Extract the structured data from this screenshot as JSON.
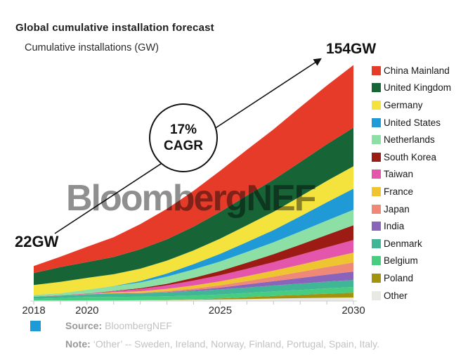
{
  "header": {
    "title": "Global cumulative installation forecast",
    "subtitle": "Cumulative installations (GW)"
  },
  "annotations": {
    "start_value": "22GW",
    "end_value": "154GW",
    "cagr_line1": "17%",
    "cagr_line2": "CAGR",
    "watermark": "BloombergNEF"
  },
  "footer": {
    "bullet_color": "#1f9ad7",
    "source_label": "Source:",
    "source_text": "BloombergNEF",
    "note_label": "Note:",
    "note_text": "‘Other’ -- Sweden, Ireland, Norway, Finland, Portugal, Spain, Italy."
  },
  "chart_data": {
    "type": "area",
    "stacked": true,
    "title": "Global cumulative installation forecast",
    "ylabel": "Cumulative installations (GW)",
    "x": [
      2018,
      2019,
      2020,
      2021,
      2022,
      2023,
      2024,
      2025,
      2026,
      2027,
      2028,
      2029,
      2030
    ],
    "x_ticks": [
      2018,
      2020,
      2025,
      2030
    ],
    "y_start_total": 22,
    "y_end_total": 154,
    "cagr_percent": 17,
    "grid": false,
    "legend_position": "right",
    "series": [
      {
        "id": "china-mainland",
        "name": "China Mainland",
        "color": "#e73b2a",
        "values": [
          4.6,
          6.8,
          10.0,
          13.0,
          16.5,
          20.0,
          23.5,
          27.0,
          30.0,
          33.0,
          36.0,
          38.5,
          41.0
        ]
      },
      {
        "id": "united-kingdom",
        "name": "United Kingdom",
        "color": "#176437",
        "values": [
          7.9,
          9.7,
          10.4,
          11.3,
          12.7,
          13.9,
          15.5,
          17.5,
          19.5,
          21.0,
          22.5,
          24.0,
          25.3
        ]
      },
      {
        "id": "germany",
        "name": "Germany",
        "color": "#f4e23d",
        "values": [
          6.4,
          7.5,
          7.7,
          7.8,
          8.1,
          8.5,
          9.0,
          10.0,
          11.0,
          12.0,
          13.0,
          14.0,
          14.7
        ]
      },
      {
        "id": "united-states",
        "name": "United States",
        "color": "#1f9ad7",
        "values": [
          0.03,
          0.03,
          0.04,
          0.05,
          0.9,
          2.0,
          3.5,
          5.0,
          6.5,
          8.0,
          10.0,
          12.0,
          13.8
        ]
      },
      {
        "id": "netherlands",
        "name": "Netherlands",
        "color": "#8ce0a5",
        "values": [
          1.1,
          1.1,
          2.5,
          3.0,
          3.8,
          4.7,
          5.5,
          6.2,
          7.0,
          7.8,
          8.6,
          9.4,
          10.1
        ]
      },
      {
        "id": "south-korea",
        "name": "South Korea",
        "color": "#9c1b14",
        "values": [
          0.05,
          0.07,
          0.1,
          0.2,
          0.5,
          1.0,
          1.8,
          2.8,
          4.0,
          5.2,
          6.6,
          8.1,
          9.7
        ]
      },
      {
        "id": "taiwan",
        "name": "Taiwan",
        "color": "#e356ab",
        "values": [
          0.01,
          0.13,
          0.25,
          0.8,
          1.5,
          2.3,
          3.2,
          4.0,
          4.8,
          5.6,
          6.5,
          7.4,
          8.3
        ]
      },
      {
        "id": "france",
        "name": "France",
        "color": "#eec431",
        "values": [
          0.0,
          0.0,
          0.0,
          0.5,
          1.0,
          1.5,
          2.0,
          2.6,
          3.2,
          3.9,
          4.7,
          5.5,
          6.4
        ]
      },
      {
        "id": "japan",
        "name": "Japan",
        "color": "#f08878",
        "values": [
          0.07,
          0.09,
          0.15,
          0.2,
          0.3,
          0.6,
          1.0,
          1.5,
          2.2,
          3.0,
          4.0,
          5.0,
          6.0
        ]
      },
      {
        "id": "india",
        "name": "India",
        "color": "#8a63bb",
        "values": [
          0.0,
          0.0,
          0.0,
          0.0,
          0.0,
          0.2,
          0.6,
          1.2,
          2.0,
          2.8,
          3.7,
          4.6,
          5.5
        ]
      },
      {
        "id": "denmark",
        "name": "Denmark",
        "color": "#41b696",
        "values": [
          1.3,
          1.7,
          1.7,
          2.3,
          2.3,
          2.6,
          3.0,
          3.3,
          3.6,
          3.9,
          4.1,
          4.4,
          4.6
        ]
      },
      {
        "id": "belgium",
        "name": "Belgium",
        "color": "#46cd80",
        "values": [
          1.2,
          1.6,
          2.3,
          2.3,
          2.3,
          2.4,
          2.5,
          2.6,
          2.8,
          3.0,
          3.2,
          3.5,
          3.7
        ]
      },
      {
        "id": "poland",
        "name": "Poland",
        "color": "#a3930c",
        "values": [
          0.0,
          0.0,
          0.0,
          0.0,
          0.0,
          0.1,
          0.3,
          0.7,
          1.2,
          1.7,
          2.2,
          2.7,
          3.2
        ]
      },
      {
        "id": "other",
        "name": "Other",
        "color": "#e8e8e4",
        "values": [
          0.3,
          0.3,
          0.4,
          0.4,
          0.5,
          0.6,
          0.8,
          1.0,
          1.3,
          1.6,
          1.9,
          2.1,
          2.3
        ]
      }
    ]
  }
}
